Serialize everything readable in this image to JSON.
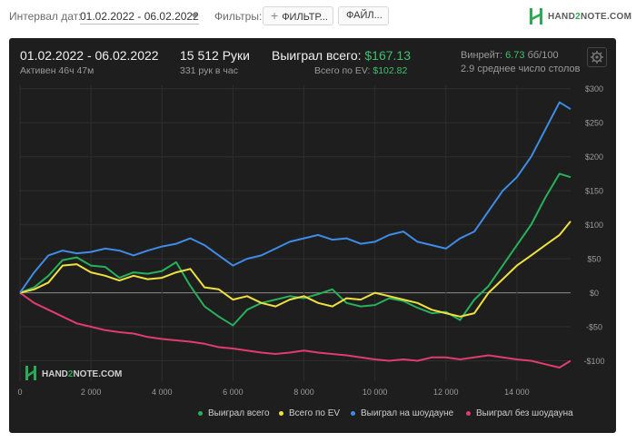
{
  "topbar": {
    "interval_label": "Интервал дат:",
    "date_range": "01.02.2022 - 06.02.2022",
    "filters_label": "Фильтры:",
    "filter_button": "ФИЛЬТР...",
    "files_button": "ФАЙЛ...",
    "logo": {
      "part1": "HAND",
      "part2": "2",
      "part3": "NOTE.COM"
    }
  },
  "stats": {
    "period": "01.02.2022 - 06.02.2022",
    "active": "Активен 46ч 47м",
    "hands": "15 512 Руки",
    "hands_rate": "331 рук в час",
    "won_total_label": "Выиграл всего:",
    "won_total_value": "$167.13",
    "ev_total_label": "Всего по EV:",
    "ev_total_value": "$102.82",
    "winrate_label": "Винрейт:",
    "winrate_value": "6.73",
    "winrate_unit": "бб/100",
    "avg_tables": "2.9 среднее число столов"
  },
  "watermark": {
    "part1": "HAND",
    "part2": "2",
    "part3": "NOTE.COM"
  },
  "chart_data": {
    "type": "line",
    "xlim": [
      0,
      15512
    ],
    "ylim": [
      -130,
      305
    ],
    "x_ticks": [
      0,
      2000,
      4000,
      6000,
      8000,
      10000,
      12000,
      14000
    ],
    "x_tick_labels": [
      "0",
      "2 000",
      "4 000",
      "6 000",
      "8 000",
      "10 000",
      "12 000",
      "14 000"
    ],
    "y_ticks": [
      300,
      250,
      200,
      150,
      100,
      50,
      0,
      -50,
      -100
    ],
    "y_tick_labels": [
      "$300",
      "$250",
      "$200",
      "$150",
      "$100",
      "$50",
      "$0",
      "-$50",
      "-$100"
    ],
    "grid": true,
    "legend_position": "bottom-right",
    "series": [
      {
        "name": "Выиграл всего",
        "color": "#27b15b",
        "x": [
          0,
          400,
          800,
          1200,
          1600,
          2000,
          2400,
          2800,
          3200,
          3600,
          4000,
          4400,
          4800,
          5200,
          5600,
          6000,
          6400,
          6800,
          7200,
          7600,
          8000,
          8400,
          8800,
          9200,
          9600,
          10000,
          10400,
          10800,
          11200,
          11600,
          12000,
          12400,
          12800,
          13200,
          13600,
          14000,
          14400,
          14800,
          15200,
          15512
        ],
        "values": [
          0,
          8,
          25,
          48,
          52,
          40,
          38,
          22,
          30,
          28,
          32,
          45,
          10,
          -20,
          -35,
          -48,
          -25,
          -15,
          -10,
          -5,
          -8,
          -2,
          5,
          -15,
          -20,
          -18,
          -8,
          -12,
          -22,
          -30,
          -28,
          -40,
          -10,
          10,
          40,
          70,
          100,
          140,
          175,
          170
        ]
      },
      {
        "name": "Всего по EV",
        "color": "#f0e040",
        "x": [
          0,
          400,
          800,
          1200,
          1600,
          2000,
          2400,
          2800,
          3200,
          3600,
          4000,
          4400,
          4800,
          5200,
          5600,
          6000,
          6400,
          6800,
          7200,
          7600,
          8000,
          8400,
          8800,
          9200,
          9600,
          10000,
          10400,
          10800,
          11200,
          11600,
          12000,
          12400,
          12800,
          13200,
          13600,
          14000,
          14400,
          14800,
          15200,
          15512
        ],
        "values": [
          0,
          5,
          15,
          40,
          42,
          30,
          25,
          18,
          25,
          20,
          22,
          30,
          35,
          8,
          5,
          -10,
          -5,
          -15,
          -20,
          -10,
          -5,
          -15,
          -20,
          -8,
          -10,
          0,
          -5,
          -10,
          -15,
          -25,
          -30,
          -35,
          -30,
          0,
          20,
          40,
          55,
          70,
          85,
          105
        ]
      },
      {
        "name": "Выиграл на шоудауне",
        "color": "#3f8ce6",
        "x": [
          0,
          400,
          800,
          1200,
          1600,
          2000,
          2400,
          2800,
          3200,
          3600,
          4000,
          4400,
          4800,
          5200,
          5600,
          6000,
          6400,
          6800,
          7200,
          7600,
          8000,
          8400,
          8800,
          9200,
          9600,
          10000,
          10400,
          10800,
          11200,
          11600,
          12000,
          12400,
          12800,
          13200,
          13600,
          14000,
          14400,
          14800,
          15200,
          15512
        ],
        "values": [
          0,
          30,
          55,
          62,
          58,
          60,
          65,
          62,
          55,
          62,
          68,
          72,
          80,
          70,
          55,
          40,
          50,
          55,
          65,
          75,
          80,
          85,
          78,
          80,
          72,
          75,
          85,
          90,
          75,
          70,
          65,
          80,
          90,
          120,
          150,
          170,
          200,
          240,
          280,
          270
        ]
      },
      {
        "name": "Выиграл без шоудауна",
        "color": "#e03c6e",
        "x": [
          0,
          400,
          800,
          1200,
          1600,
          2000,
          2400,
          2800,
          3200,
          3600,
          4000,
          4400,
          4800,
          5200,
          5600,
          6000,
          6400,
          6800,
          7200,
          7600,
          8000,
          8400,
          8800,
          9200,
          9600,
          10000,
          10400,
          10800,
          11200,
          11600,
          12000,
          12400,
          12800,
          13200,
          13600,
          14000,
          14400,
          14800,
          15200,
          15512
        ],
        "values": [
          0,
          -15,
          -25,
          -35,
          -45,
          -50,
          -55,
          -58,
          -60,
          -65,
          -68,
          -70,
          -72,
          -75,
          -80,
          -82,
          -85,
          -88,
          -90,
          -88,
          -85,
          -88,
          -90,
          -92,
          -95,
          -98,
          -100,
          -98,
          -100,
          -95,
          -95,
          -98,
          -95,
          -92,
          -95,
          -98,
          -100,
          -105,
          -110,
          -100
        ]
      }
    ]
  }
}
